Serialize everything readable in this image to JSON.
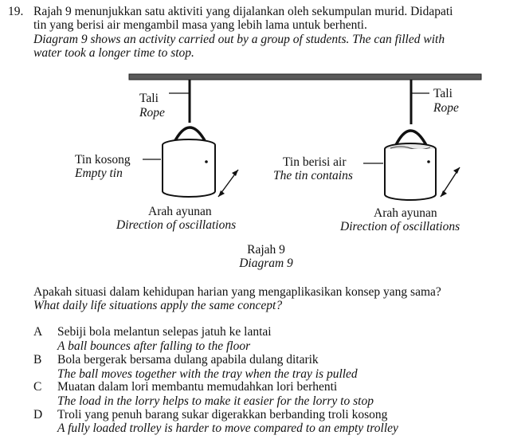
{
  "question": {
    "number": "19.",
    "stem_ms_1": "Rajah 9 menunjukkan satu aktiviti yang dijalankan oleh sekumpulan murid. Didapati",
    "stem_ms_2": "tin yang berisi air mengambil masa yang lebih lama untuk berhenti.",
    "stem_en_1": "Diagram 9 shows an activity carried out by a group of students. The can filled with",
    "stem_en_2": "water took a longer time to stop."
  },
  "diagram": {
    "left_rope_ms": "Tali",
    "left_rope_en": "Rope",
    "right_rope_ms": "Tali",
    "right_rope_en": "Rope",
    "empty_tin_ms": "Tin kosong",
    "empty_tin_en": "Empty tin",
    "water_tin_ms": "Tin berisi air",
    "water_tin_en": "The tin contains",
    "left_dir_ms": "Arah ayunan",
    "left_dir_en": "Direction of oscillations",
    "right_dir_ms": "Arah ayunan",
    "right_dir_en": "Direction of oscillations",
    "caption_ms": "Rajah 9",
    "caption_en": "Diagram 9"
  },
  "prompt": {
    "ms": "Apakah situasi dalam kehidupan harian yang mengaplikasikan konsep yang sama?",
    "en": "What daily life situations apply the same concept?"
  },
  "options": [
    {
      "letter": "A",
      "ms": "Sebiji bola melantun selepas jatuh ke lantai",
      "en": "A ball bounces after falling to the floor"
    },
    {
      "letter": "B",
      "ms": "Bola bergerak bersama dulang apabila dulang ditarik",
      "en": "The ball moves together with the tray when the tray is pulled"
    },
    {
      "letter": "C",
      "ms": "Muatan dalam lori membantu memudahkan lori berhenti",
      "en": "The load in the lorry helps to make it easier for the lorry to stop"
    },
    {
      "letter": "D",
      "ms": "Troli yang penuh barang sukar digerakkan berbanding troli kosong",
      "en": "A fully loaded trolley is harder to move compared to an empty trolley"
    }
  ]
}
